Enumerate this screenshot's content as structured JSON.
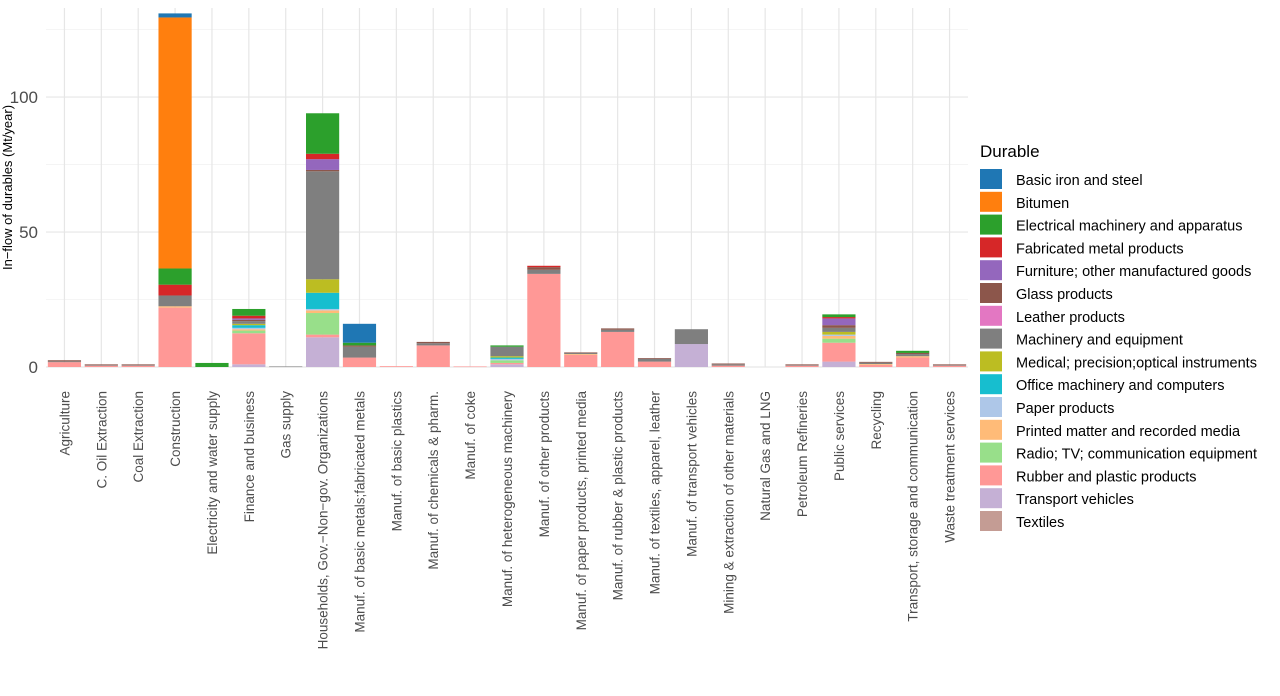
{
  "chart_data": {
    "type": "bar",
    "stacked": true,
    "ylabel": "In−flow of durables  (Mt/year)",
    "xlabel": "",
    "ylim": [
      0,
      133
    ],
    "yticks": [
      0,
      50,
      100
    ],
    "grid": true,
    "legend": {
      "title": "Durable",
      "position": "right"
    },
    "categories": [
      "Agriculture",
      "C. Oil Extraction",
      "Coal Extraction",
      "Construction",
      "Electricity and water supply",
      "Finance and business",
      "Gas supply",
      "Households, Gov.−Non−gov. Organizations",
      "Manuf. of basic metals;fabricated metals",
      "Manuf. of basic plastics",
      "Manuf. of chemicals & pharm.",
      "Manuf. of coke",
      "Manuf. of heterogeneous machinery",
      "Manuf. of other products",
      "Manuf. of paper products, printed media",
      "Manuf. of rubber & plastic products",
      "Manuf. of textiles, apparel, leather",
      "Manuf. of transport vehicles",
      "Mining & extraction of other materials",
      "Natural Gas and LNG",
      "Petroleum Refineries",
      "Public services",
      "Recycling",
      "Transport, storage and communication",
      "Waste treatment services"
    ],
    "series": [
      {
        "name": "Textiles",
        "color": "#c49c94",
        "values": [
          0,
          0,
          0,
          0,
          0,
          0,
          0,
          0,
          0,
          0,
          0,
          0,
          0,
          0,
          0,
          0,
          0,
          0,
          0,
          0,
          0,
          0,
          0,
          0,
          0
        ]
      },
      {
        "name": "Transport vehicles",
        "color": "#c5b0d5",
        "values": [
          0,
          0,
          0,
          0,
          0,
          1,
          0,
          11,
          0,
          0,
          0,
          0,
          1,
          0,
          0,
          0,
          0,
          8.5,
          0,
          0,
          0,
          2,
          0,
          0,
          0
        ]
      },
      {
        "name": "Rubber and plastic products",
        "color": "#ff9896",
        "values": [
          1.8,
          0.5,
          0.5,
          22,
          0,
          11.5,
          0,
          1,
          3.5,
          0.3,
          8,
          0.2,
          0.5,
          34.5,
          4.5,
          13,
          2,
          0,
          0.5,
          0,
          0.5,
          7,
          0.8,
          3.5,
          0.5
        ]
      },
      {
        "name": "Radio; TV; communication equipment",
        "color": "#98df8a",
        "values": [
          0,
          0,
          0,
          0,
          0,
          1,
          0,
          8,
          0,
          0,
          0,
          0,
          1,
          0,
          0,
          0,
          0,
          0,
          0,
          0,
          0,
          1.5,
          0,
          0,
          0
        ]
      },
      {
        "name": "Printed matter and recorded media",
        "color": "#ffbb78",
        "values": [
          0,
          0,
          0,
          0.5,
          0,
          0.5,
          0,
          1,
          0,
          0,
          0,
          0,
          0,
          0,
          0.3,
          0,
          0,
          0,
          0,
          0,
          0,
          1,
          0.3,
          0.5,
          0
        ]
      },
      {
        "name": "Paper products",
        "color": "#aec7e8",
        "values": [
          0,
          0,
          0,
          0,
          0,
          0.5,
          0,
          0.5,
          0,
          0,
          0,
          0,
          0.5,
          0,
          0,
          0,
          0,
          0,
          0,
          0,
          0,
          0.5,
          0,
          0,
          0
        ]
      },
      {
        "name": "Office machinery and computers",
        "color": "#17becf",
        "values": [
          0,
          0,
          0,
          0,
          0,
          1,
          0,
          6,
          0,
          0,
          0,
          0,
          0.5,
          0,
          0,
          0,
          0,
          0,
          0,
          0,
          0,
          0,
          0,
          0,
          0
        ]
      },
      {
        "name": "Medical; precision;optical instruments",
        "color": "#bcbd22",
        "values": [
          0,
          0,
          0,
          0,
          0,
          0.5,
          0,
          5,
          0,
          0,
          0,
          0,
          0.5,
          0,
          0,
          0,
          0,
          0,
          0,
          0,
          0,
          1,
          0,
          0,
          0
        ]
      },
      {
        "name": "Machinery and equipment",
        "color": "#7f7f7f",
        "values": [
          0.3,
          0.3,
          0.3,
          4,
          0,
          1,
          0.2,
          40,
          4,
          0,
          0.8,
          0,
          3.5,
          1.5,
          0.4,
          0.8,
          1,
          5.5,
          0.5,
          0,
          0.3,
          1.5,
          0.5,
          0.8,
          0.3
        ]
      },
      {
        "name": "Leather products",
        "color": "#e377c2",
        "values": [
          0,
          0,
          0,
          0,
          0,
          0,
          0,
          0,
          0,
          0,
          0,
          0,
          0,
          0,
          0,
          0,
          0,
          0,
          0,
          0,
          0,
          0,
          0,
          0,
          0
        ]
      },
      {
        "name": "Glass products",
        "color": "#8c564b",
        "values": [
          0.4,
          0.2,
          0.2,
          0,
          0,
          0.5,
          0,
          0.5,
          0.5,
          0,
          0.5,
          0,
          0,
          1,
          0.2,
          0.5,
          0.3,
          0,
          0.3,
          0,
          0.2,
          1,
          0.3,
          0.4,
          0.2
        ]
      },
      {
        "name": "Furniture; other manufactured goods",
        "color": "#9467bd",
        "values": [
          0,
          0,
          0,
          0,
          0,
          0.5,
          0,
          4,
          0,
          0,
          0,
          0,
          0,
          0,
          0,
          0,
          0,
          0,
          0,
          0,
          0,
          2.5,
          0,
          0,
          0
        ]
      },
      {
        "name": "Fabricated metal products",
        "color": "#d62728",
        "values": [
          0,
          0,
          0,
          4,
          0,
          1,
          0,
          2,
          0,
          0,
          0,
          0,
          0,
          0.5,
          0,
          0,
          0,
          0,
          0,
          0,
          0,
          0.5,
          0,
          0,
          0
        ]
      },
      {
        "name": "Electrical machinery and apparatus",
        "color": "#2ca02c",
        "values": [
          0,
          0,
          0,
          6,
          1.5,
          2.5,
          0,
          15,
          1,
          0,
          0,
          0,
          0.5,
          0,
          0,
          0,
          0,
          0,
          0,
          0,
          0,
          1,
          0,
          0.8,
          0
        ]
      },
      {
        "name": "Bitumen",
        "color": "#ff7f0e",
        "values": [
          0,
          0,
          0,
          93,
          0,
          0,
          0,
          0,
          0,
          0,
          0,
          0,
          0,
          0,
          0,
          0,
          0,
          0,
          0,
          0,
          0,
          0,
          0,
          0,
          0
        ]
      },
      {
        "name": "Basic iron and steel",
        "color": "#1f77b4",
        "values": [
          0,
          0,
          0,
          1.5,
          0,
          0,
          0,
          0,
          7,
          0,
          0,
          0,
          0,
          0,
          0,
          0,
          0,
          0,
          0,
          0,
          0,
          0,
          0,
          0,
          0
        ]
      }
    ],
    "legend_order": [
      "Basic iron and steel",
      "Bitumen",
      "Electrical machinery and apparatus",
      "Fabricated metal products",
      "Furniture; other manufactured goods",
      "Glass products",
      "Leather products",
      "Machinery and equipment",
      "Medical; precision;optical instruments",
      "Office machinery and computers",
      "Paper products",
      "Printed matter and recorded media",
      "Radio; TV; communication equipment",
      "Rubber and plastic products",
      "Transport vehicles",
      "Textiles"
    ]
  }
}
